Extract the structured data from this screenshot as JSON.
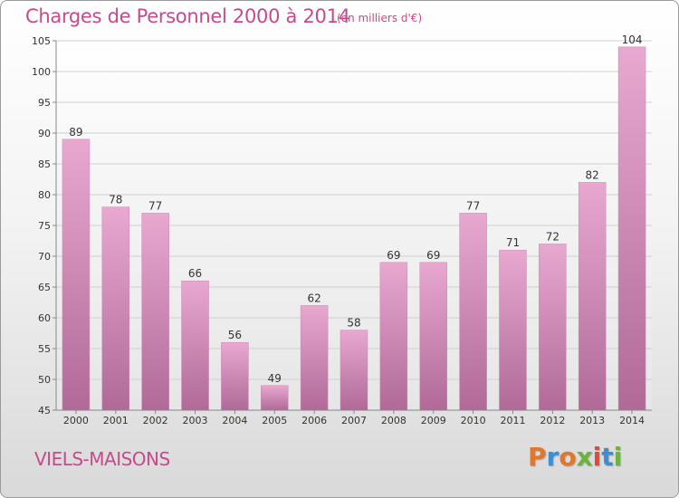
{
  "header": {
    "title": "Charges de Personnel 2000 à 2014",
    "unit": "(en milliers d'€)"
  },
  "footer": {
    "town": "VIELS-MAISONS",
    "brand": "Proxiti"
  },
  "colors": {
    "title": "#c74a8c",
    "bar_top": "#e8a8d0",
    "bar_bottom": "#b06a98",
    "grid": "#d0d0d0",
    "axis_text": "#333333"
  },
  "chart_data": {
    "type": "bar",
    "categories": [
      "2000",
      "2001",
      "2002",
      "2003",
      "2004",
      "2005",
      "2006",
      "2007",
      "2008",
      "2009",
      "2010",
      "2011",
      "2012",
      "2013",
      "2014"
    ],
    "values": [
      89,
      78,
      77,
      66,
      56,
      49,
      62,
      58,
      69,
      69,
      77,
      71,
      72,
      82,
      104
    ],
    "ylim": [
      45,
      105
    ],
    "yticks": [
      45,
      50,
      55,
      60,
      65,
      70,
      75,
      80,
      85,
      90,
      95,
      100,
      105
    ],
    "grid": true,
    "data_labels": true
  }
}
